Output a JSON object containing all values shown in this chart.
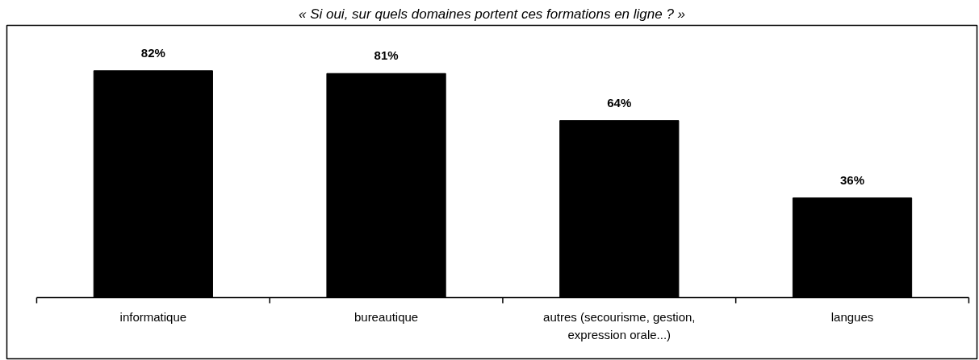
{
  "chart_data": {
    "type": "bar",
    "title": "« Si oui, sur quels domaines portent ces formations en ligne ? »",
    "categories": [
      "informatique",
      "bureautique",
      "autres (secourisme, gestion, expression orale...)",
      "langues"
    ],
    "values": [
      82,
      81,
      64,
      36
    ],
    "value_labels": [
      "82%",
      "81%",
      "64%",
      "36%"
    ],
    "color": "#000000",
    "grid": false
  }
}
